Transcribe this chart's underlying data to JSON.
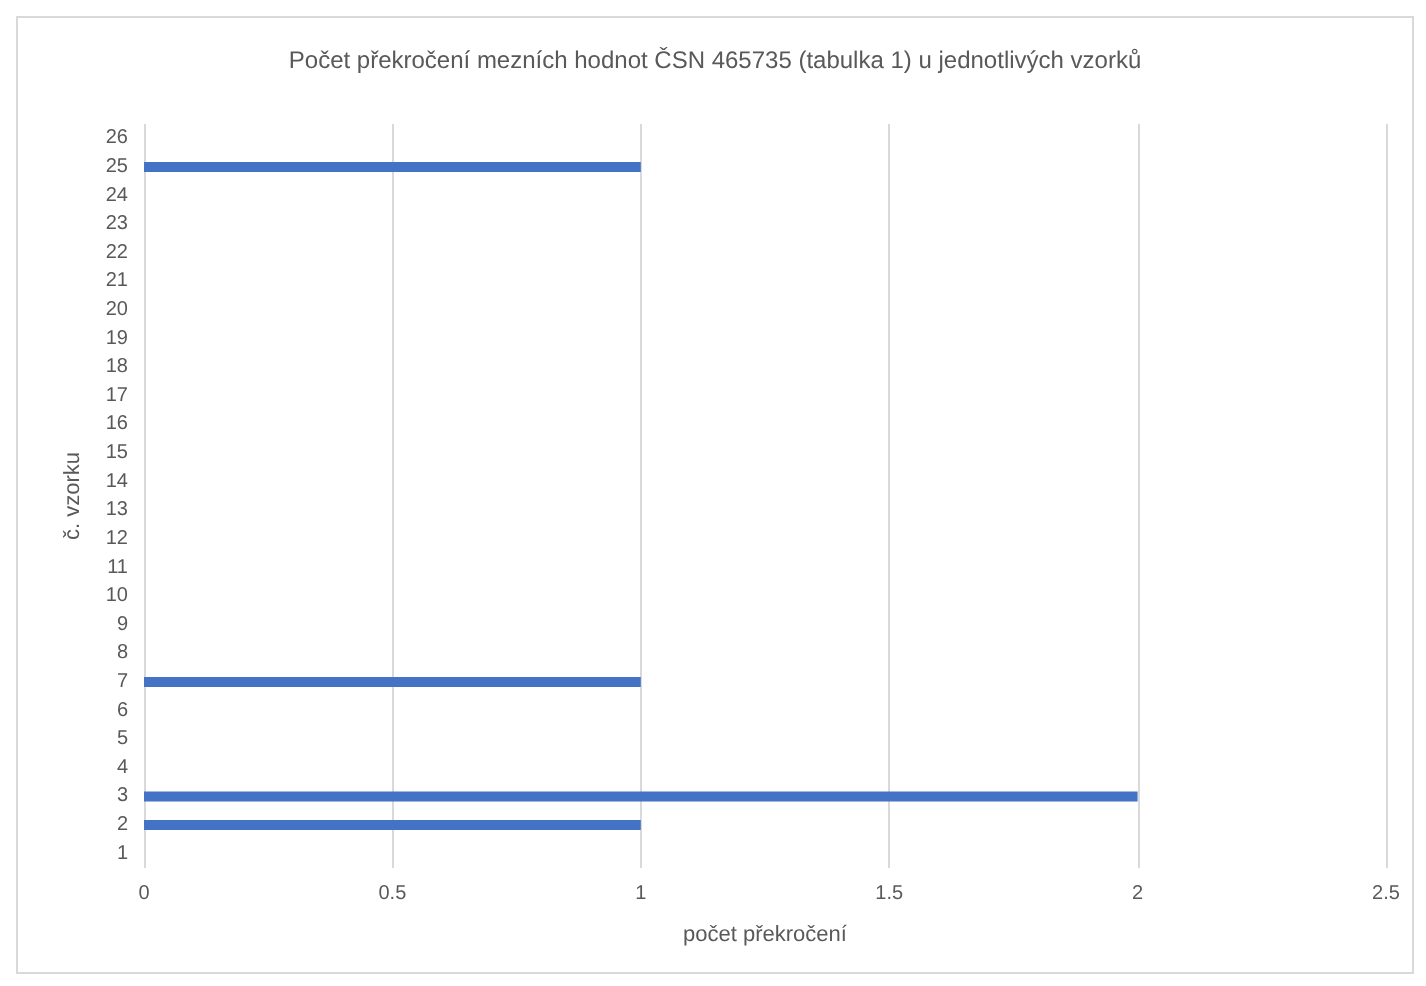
{
  "chart_data": {
    "type": "bar",
    "orientation": "horizontal",
    "title": "Počet překročení mezních hodnot ČSN 465735 (tabulka 1) u jednotlivých vzorků",
    "xlabel": "počet překročení",
    "ylabel": "č. vzorku",
    "categories": [
      "26",
      "25",
      "24",
      "23",
      "22",
      "21",
      "20",
      "19",
      "18",
      "17",
      "16",
      "15",
      "14",
      "13",
      "12",
      "11",
      "10",
      "9",
      "8",
      "7",
      "6",
      "5",
      "4",
      "3",
      "2",
      "1"
    ],
    "values": [
      0,
      1,
      0,
      0,
      0,
      0,
      0,
      0,
      0,
      0,
      0,
      0,
      0,
      0,
      0,
      0,
      0,
      0,
      0,
      1,
      0,
      0,
      0,
      2,
      1,
      0
    ],
    "color": "#4472c4",
    "xlim": [
      0,
      2.5
    ],
    "xticks": [
      0,
      0.5,
      1,
      1.5,
      2,
      2.5
    ],
    "grid": "x"
  }
}
